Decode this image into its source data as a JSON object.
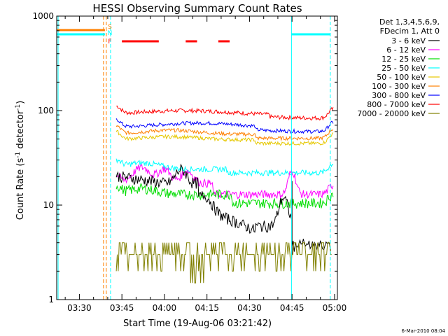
{
  "chart_data": {
    "type": "line",
    "title": "HESSI Observing Summary Count Rates",
    "xlabel": "Start Time (19-Aug-06 03:21:42)",
    "ylabel_main": "Count Rate (s",
    "ylabel_sup1": "-1",
    "ylabel_mid": " detector",
    "ylabel_sup2": "-1",
    "ylabel_end": ")",
    "y_scale": "log",
    "ylim": [
      1,
      1000
    ],
    "xlim_min": [
      0,
      99
    ],
    "x_tick_labels": [
      "03:30",
      "03:45",
      "04:00",
      "04:15",
      "04:30",
      "04:45",
      "05:00"
    ],
    "x_tick_min": [
      8,
      23,
      38,
      53,
      68,
      83,
      98
    ],
    "y_tick_labels": [
      "1",
      "10",
      "100",
      "1000"
    ],
    "y_tick_values": [
      1,
      10,
      100,
      1000
    ],
    "legend_header": [
      "Det 1,3,4,5,6,9,",
      "FDecim 1, Att 0"
    ],
    "legend_placement": "right",
    "series": [
      {
        "name": "3 - 6 keV",
        "color": "#000000"
      },
      {
        "name": "6 - 12 keV",
        "color": "#ff00ff"
      },
      {
        "name": "12 - 25 keV",
        "color": "#00dd00"
      },
      {
        "name": "25 - 50 keV",
        "color": "#00ffff"
      },
      {
        "name": "50 - 100 keV",
        "color": "#e6c800"
      },
      {
        "name": "100 - 300 keV",
        "color": "#ff8000"
      },
      {
        "name": "300 - 800 keV",
        "color": "#0000ff"
      },
      {
        "name": "800 - 7000 keV",
        "color": "#ff0000"
      },
      {
        "name": "7000 - 20000 keV",
        "color": "#808000"
      }
    ],
    "flags": [
      {
        "label": "S",
        "color": "#ff8000"
      },
      {
        "label": "N",
        "color": "#00ffff"
      },
      {
        "label": "F",
        "color": "#ff0000"
      }
    ],
    "footer_date": "6-Mar-2010 08:04"
  }
}
